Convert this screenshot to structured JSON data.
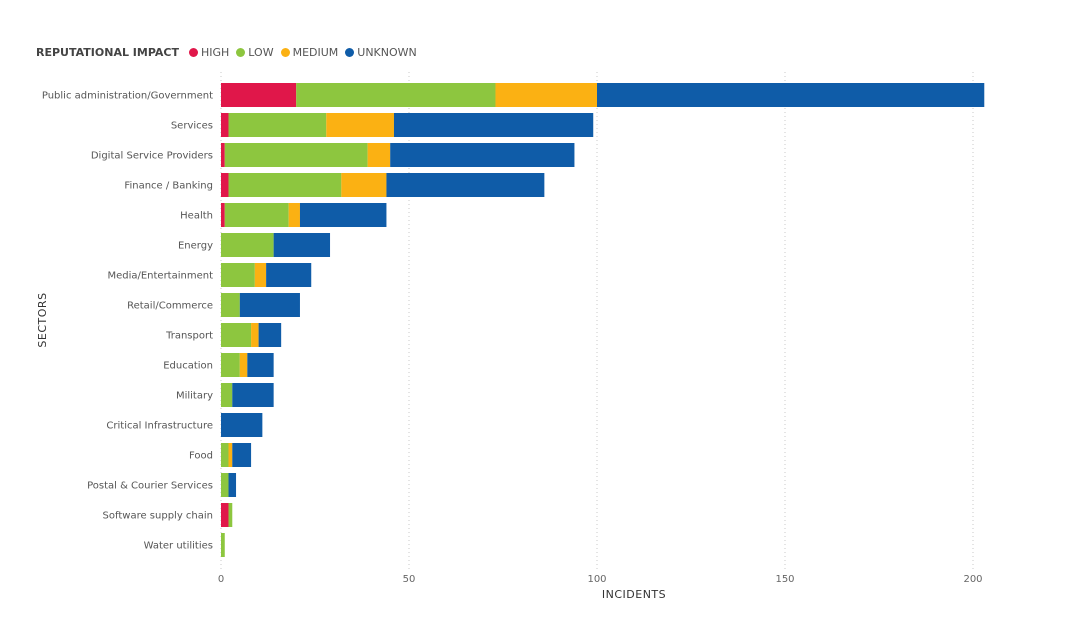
{
  "chart_data": {
    "type": "bar",
    "orientation": "horizontal",
    "stacked": true,
    "legend_title": "REPUTATIONAL IMPACT",
    "legend_position": "top-left",
    "xlabel": "INCIDENTS",
    "ylabel": "SECTORS",
    "xlim": [
      0,
      210
    ],
    "x_ticks": [
      0,
      50,
      100,
      150,
      200
    ],
    "grid": "vertical dotted",
    "categories": [
      "Public administration/Government",
      "Services",
      "Digital Service Providers",
      "Finance / Banking",
      "Health",
      "Energy",
      "Media/Entertainment",
      "Retail/Commerce",
      "Transport",
      "Education",
      "Military",
      "Critical Infrastructure",
      "Food",
      "Postal & Courier Services",
      "Software supply chain",
      "Water utilities"
    ],
    "series": [
      {
        "name": "HIGH",
        "color": "#e0174a",
        "values": [
          20,
          2,
          1,
          2,
          1,
          0,
          0,
          0,
          0,
          0,
          0,
          0,
          0,
          0,
          2,
          0
        ]
      },
      {
        "name": "LOW",
        "color": "#8dc63f",
        "values": [
          53,
          26,
          38,
          30,
          17,
          14,
          9,
          5,
          8,
          5,
          3,
          0,
          2,
          2,
          1,
          1
        ]
      },
      {
        "name": "MEDIUM",
        "color": "#fbb113",
        "values": [
          27,
          18,
          6,
          12,
          3,
          0,
          3,
          0,
          2,
          2,
          0,
          0,
          1,
          0,
          0,
          0
        ]
      },
      {
        "name": "UNKNOWN",
        "color": "#0f5ca8",
        "values": [
          103,
          53,
          49,
          42,
          23,
          15,
          12,
          16,
          6,
          7,
          11,
          11,
          5,
          2,
          0,
          0
        ]
      }
    ]
  }
}
